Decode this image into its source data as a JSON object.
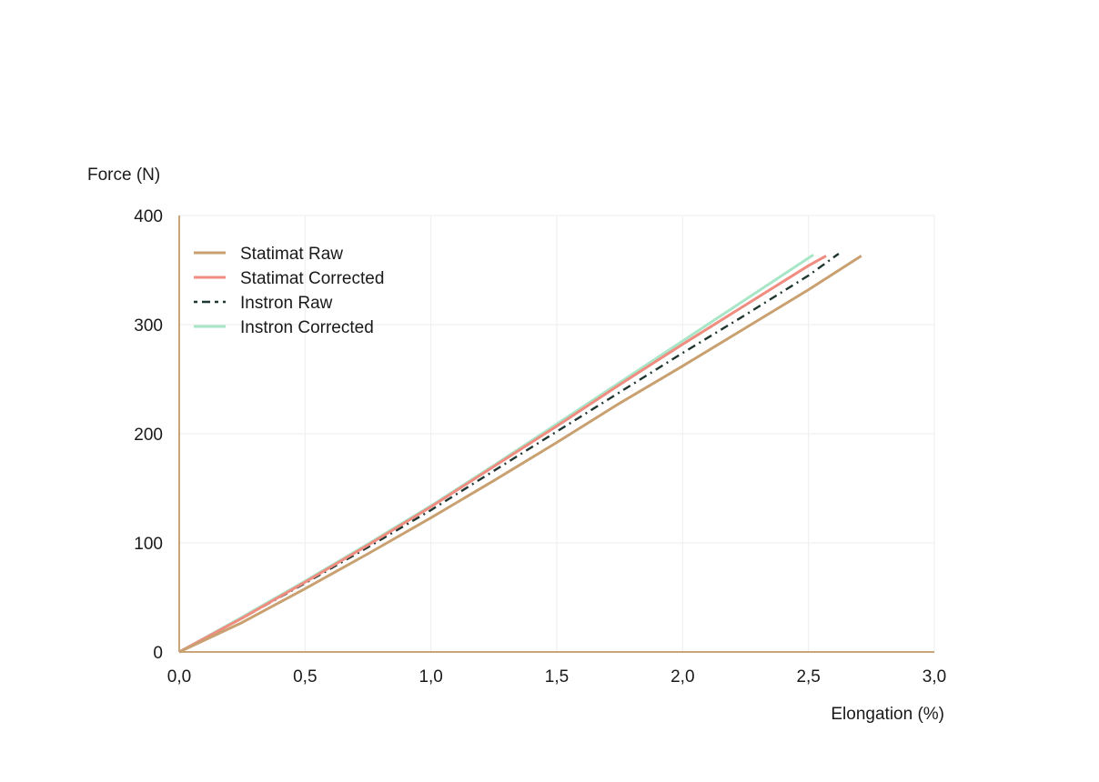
{
  "chart_data": {
    "type": "line",
    "title": "",
    "xlabel": "Elongation (%)",
    "ylabel": "Force (N)",
    "xlim": [
      0,
      3
    ],
    "ylim": [
      0,
      400
    ],
    "x_ticks": [
      {
        "value": 0,
        "label": "0,0"
      },
      {
        "value": 0.5,
        "label": "0,5"
      },
      {
        "value": 1,
        "label": "1,0"
      },
      {
        "value": 1.5,
        "label": "1,5"
      },
      {
        "value": 2,
        "label": "2,0"
      },
      {
        "value": 2.5,
        "label": "2,5"
      },
      {
        "value": 3,
        "label": "3,0"
      }
    ],
    "y_ticks": [
      {
        "value": 0,
        "label": "0"
      },
      {
        "value": 100,
        "label": "100"
      },
      {
        "value": 200,
        "label": "200"
      },
      {
        "value": 300,
        "label": "300"
      },
      {
        "value": 400,
        "label": "400"
      }
    ],
    "grid": true,
    "legend_position": "top-left",
    "axis_color": "#c9a57a",
    "series": [
      {
        "name": "Statimat Raw",
        "color": "#c9a070",
        "dash": "solid",
        "x": [
          0,
          0.25,
          0.5,
          0.75,
          1.0,
          1.25,
          1.5,
          1.75,
          2.0,
          2.25,
          2.5,
          2.71
        ],
        "y": [
          0,
          27,
          58,
          90,
          123,
          157,
          192,
          228,
          262,
          297,
          332,
          363
        ]
      },
      {
        "name": "Statimat Corrected",
        "color": "#f08c80",
        "dash": "solid",
        "x": [
          0,
          0.25,
          0.5,
          0.75,
          1.0,
          1.25,
          1.5,
          1.75,
          2.0,
          2.25,
          2.5,
          2.57
        ],
        "y": [
          0,
          31,
          64,
          98,
          133,
          170,
          207,
          245,
          282,
          318,
          354,
          363
        ]
      },
      {
        "name": "Instron Raw",
        "color": "#1e3530",
        "dash": "dashdot",
        "x": [
          0,
          0.25,
          0.5,
          0.75,
          1.0,
          1.25,
          1.5,
          1.75,
          2.0,
          2.25,
          2.5,
          2.62
        ],
        "y": [
          0,
          31,
          63,
          96,
          130,
          166,
          202,
          238,
          274,
          309,
          345,
          365
        ]
      },
      {
        "name": "Instron Corrected",
        "color": "#a8e6c8",
        "dash": "solid",
        "x": [
          0,
          0.25,
          0.5,
          0.75,
          1.0,
          1.25,
          1.5,
          1.75,
          2.0,
          2.25,
          2.5,
          2.52
        ],
        "y": [
          0,
          32,
          65,
          99,
          134,
          171,
          209,
          247,
          285,
          323,
          361,
          364
        ]
      }
    ]
  }
}
